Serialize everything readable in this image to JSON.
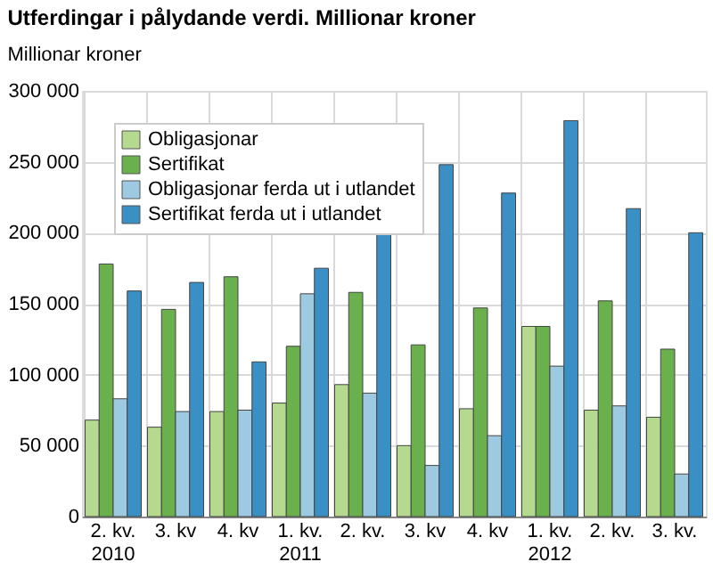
{
  "chart_data": {
    "type": "bar",
    "title": "Utferdingar i pålydande verdi. Millionar kroner",
    "ylabel": "Millionar kroner",
    "categories": [
      "2. kv.\n2010",
      "3. kv",
      "4. kv",
      "1. kv.\n2011",
      "2. kv.",
      "3. kv",
      "4. kv",
      "1. kv.\n2012",
      "2. kv.",
      "3. kv."
    ],
    "series": [
      {
        "name": "Obligasjonar",
        "color": "#b5d98f",
        "values": [
          68000,
          63000,
          74000,
          80000,
          93000,
          50000,
          76000,
          134000,
          75000,
          70000
        ]
      },
      {
        "name": "Sertifikat",
        "color": "#6ab04c",
        "values": [
          178000,
          146000,
          169000,
          120000,
          158000,
          121000,
          147000,
          134000,
          152000,
          118000
        ]
      },
      {
        "name": "Obligasjonar ferda ut i utlandet",
        "color": "#9ecae1",
        "values": [
          83000,
          74000,
          75000,
          157000,
          87000,
          36000,
          57000,
          106000,
          78000,
          30000
        ]
      },
      {
        "name": "Sertifikat ferda ut i utlandet",
        "color": "#3a8fc4",
        "values": [
          159000,
          165000,
          109000,
          175000,
          200000,
          248000,
          228000,
          279000,
          217000,
          200000
        ]
      }
    ],
    "ylim": [
      0,
      300000
    ],
    "yticks": [
      0,
      {
        "value": 50000,
        "label": "50 000"
      },
      {
        "value": 100000,
        "label": "100 000"
      },
      {
        "value": 150000,
        "label": "150 000"
      },
      {
        "value": 200000,
        "label": "200 000"
      },
      {
        "value": 250000,
        "label": "250 000"
      },
      {
        "value": 300000,
        "label": "300 000"
      }
    ],
    "grid": true,
    "legend": "top left"
  }
}
